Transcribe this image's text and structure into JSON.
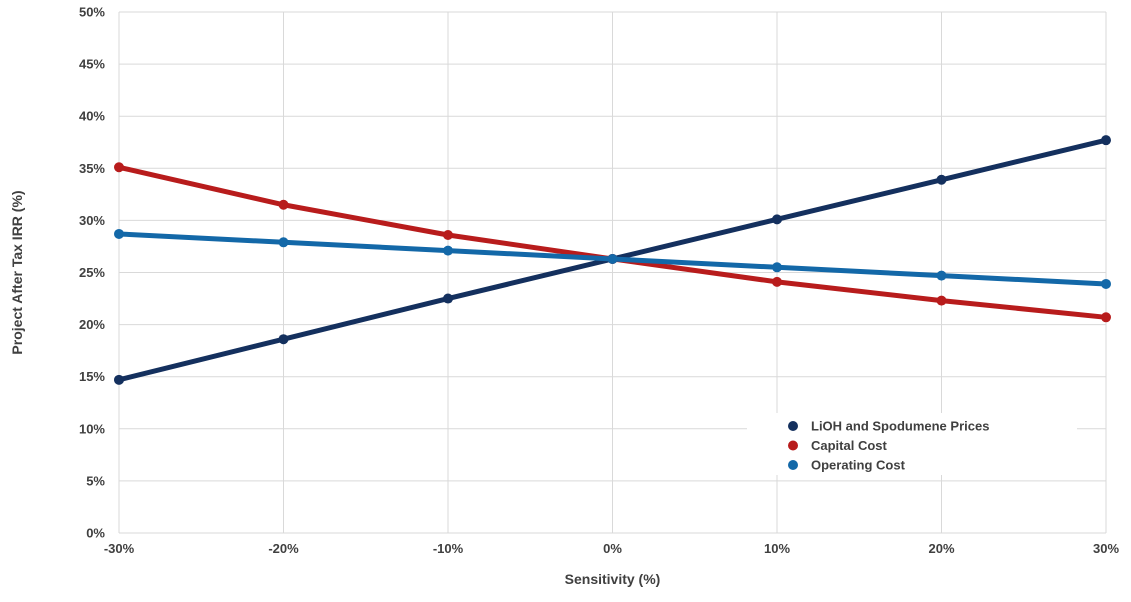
{
  "chart_data": {
    "type": "line",
    "title": "",
    "xlabel": "Sensitivity (%)",
    "ylabel": "Project After Tax IRR (%)",
    "x": [
      -30,
      -20,
      -10,
      0,
      10,
      20,
      30
    ],
    "x_tick_labels": [
      "-30%",
      "-20%",
      "-10%",
      "0%",
      "10%",
      "20%",
      "30%"
    ],
    "xlim": [
      -30,
      30
    ],
    "ylim": [
      0,
      50
    ],
    "y_ticks": [
      0,
      5,
      10,
      15,
      20,
      25,
      30,
      35,
      40,
      45,
      50
    ],
    "y_tick_labels": [
      "0%",
      "5%",
      "10%",
      "15%",
      "20%",
      "25%",
      "30%",
      "35%",
      "40%",
      "45%",
      "50%"
    ],
    "grid": true,
    "legend_position": "bottom-right",
    "series": [
      {
        "name": "LiOH and Spodumene Prices",
        "color": "#14305e",
        "values": [
          14.7,
          18.6,
          22.5,
          26.3,
          30.1,
          33.9,
          37.7
        ]
      },
      {
        "name": "Capital Cost",
        "color": "#b81c1c",
        "values": [
          35.1,
          31.5,
          28.6,
          26.3,
          24.1,
          22.3,
          20.7
        ]
      },
      {
        "name": "Operating Cost",
        "color": "#1368a8",
        "values": [
          28.7,
          27.9,
          27.1,
          26.3,
          25.5,
          24.7,
          23.9
        ]
      }
    ]
  }
}
